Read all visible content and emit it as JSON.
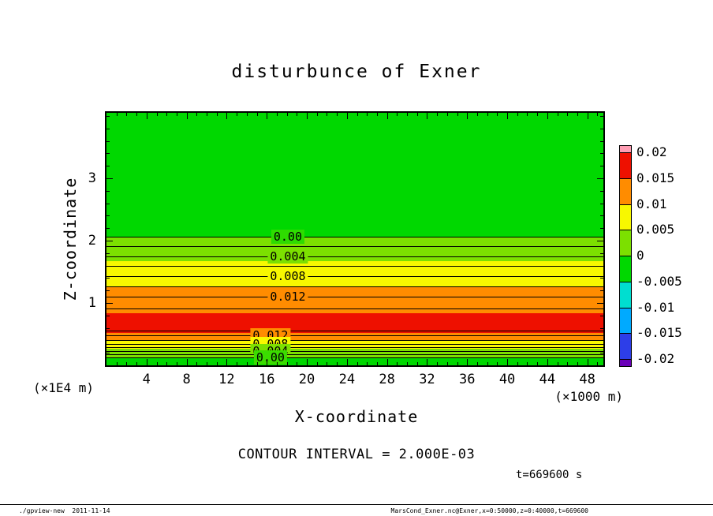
{
  "title": "disturbunce of Exner",
  "footer": {
    "left": "./gpview-new  2011-11-14",
    "right": "MarsCond_Exner.nc@Exner,x=0:50000,z=0:40000,t=669600"
  },
  "chart_data": {
    "type": "contour",
    "title": "disturbunce of Exner",
    "xlabel": "X-coordinate",
    "x_unit": "(×1000 m)",
    "ylabel": "Z-coordinate",
    "y_unit": "(×1E4 m)",
    "xlim": [
      0,
      49.6
    ],
    "ylim": [
      0,
      4.05
    ],
    "x_major_ticks": [
      4,
      8,
      12,
      16,
      20,
      24,
      28,
      32,
      36,
      40,
      44,
      48
    ],
    "x_minor_step": 1,
    "y_major_ticks": [
      1,
      2,
      3
    ],
    "y_minor_step": 0.2,
    "contour_interval": 0.002,
    "contour_interval_label": "CONTOUR INTERVAL = 2.000E-03",
    "time_label": "t=669600 s",
    "grid": false,
    "legend_position": "right-colorbar",
    "field_description": "Horizontally uniform Exner-function disturbance: ~0 above z=2.06e4 m, increasing downward to >0.015 around z=0.5-0.8e4 m, decreasing back to 0 at the surface",
    "bands": [
      {
        "z_from": 2.06,
        "z_to": 4.05,
        "value_range": [
          -0.005,
          0
        ],
        "color": "#00d800"
      },
      {
        "z_from": 1.67,
        "z_to": 2.06,
        "value_range": [
          0,
          0.005
        ],
        "color": "#7ce000"
      },
      {
        "z_from": 1.27,
        "z_to": 1.67,
        "value_range": [
          0.005,
          0.01
        ],
        "color": "#f8f800"
      },
      {
        "z_from": 0.84,
        "z_to": 1.27,
        "value_range": [
          0.01,
          0.015
        ],
        "color": "#ff8c00"
      },
      {
        "z_from": 0.52,
        "z_to": 0.84,
        "value_range": [
          0.015,
          0.02
        ],
        "color": "#ee1000"
      },
      {
        "z_from": 0.41,
        "z_to": 0.52,
        "value_range": [
          0.01,
          0.015
        ],
        "color": "#ff8c00"
      },
      {
        "z_from": 0.26,
        "z_to": 0.41,
        "value_range": [
          0.005,
          0.01
        ],
        "color": "#f8f800"
      },
      {
        "z_from": 0.125,
        "z_to": 0.26,
        "value_range": [
          0,
          0.005
        ],
        "color": "#7ce000"
      },
      {
        "z_from": 0,
        "z_to": 0.125,
        "value_range": [
          -0.005,
          0
        ],
        "color": "#00d800"
      }
    ],
    "contours": [
      {
        "level": 0.0,
        "z": 2.06,
        "label": "0.00",
        "label_x": 0.365,
        "label_bg": "#2edc00"
      },
      {
        "level": 0.002,
        "z": 1.905
      },
      {
        "level": 0.004,
        "z": 1.75,
        "label": "0.004",
        "label_x": 0.365,
        "label_bg": "#7ce000"
      },
      {
        "level": 0.006,
        "z": 1.59
      },
      {
        "level": 0.008,
        "z": 1.43,
        "label": "0.008",
        "label_x": 0.365,
        "label_bg": "#f8f800"
      },
      {
        "level": 0.01,
        "z": 1.27
      },
      {
        "level": 0.012,
        "z": 1.1,
        "label": "0.012",
        "label_x": 0.365,
        "label_bg": "#ff8c00"
      },
      {
        "level": 0.014,
        "z": 0.91
      },
      {
        "level": 0.014,
        "z": 0.56
      },
      {
        "level": 0.012,
        "z": 0.475,
        "label": "0.012",
        "label_x": 0.33,
        "label_bg": "#ff8c00"
      },
      {
        "level": 0.01,
        "z": 0.41
      },
      {
        "level": 0.008,
        "z": 0.345,
        "label": "0.008",
        "label_x": 0.33,
        "label_bg": "#f8f800"
      },
      {
        "level": 0.006,
        "z": 0.285
      },
      {
        "level": 0.004,
        "z": 0.23,
        "label": "0.004",
        "label_x": 0.33,
        "label_bg": "#7ce000"
      },
      {
        "level": 0.002,
        "z": 0.175
      },
      {
        "level": 0.0,
        "z": 0.125,
        "label": "0.00",
        "label_x": 0.33,
        "label_bg": "#3bdc00"
      }
    ],
    "colorbar": {
      "labels": [
        "0.02",
        "0.015",
        "0.01",
        "0.005",
        "0",
        "-0.005",
        "-0.01",
        "-0.015",
        "-0.02"
      ],
      "segments": [
        {
          "color": "#ff9eb4",
          "range": "> 0.02"
        },
        {
          "color": "#ee1000",
          "range": "0.015 to 0.02"
        },
        {
          "color": "#ff8c00",
          "range": "0.01 to 0.015"
        },
        {
          "color": "#f8f800",
          "range": "0.005 to 0.01"
        },
        {
          "color": "#7ce000",
          "range": "0 to 0.005"
        },
        {
          "color": "#00d800",
          "range": "-0.005 to 0"
        },
        {
          "color": "#00ded0",
          "range": "-0.01 to -0.005"
        },
        {
          "color": "#00aaff",
          "range": "-0.015 to -0.01"
        },
        {
          "color": "#2d3ee8",
          "range": "-0.02 to -0.015"
        },
        {
          "color": "#6a00b8",
          "range": "< -0.02"
        }
      ]
    }
  }
}
